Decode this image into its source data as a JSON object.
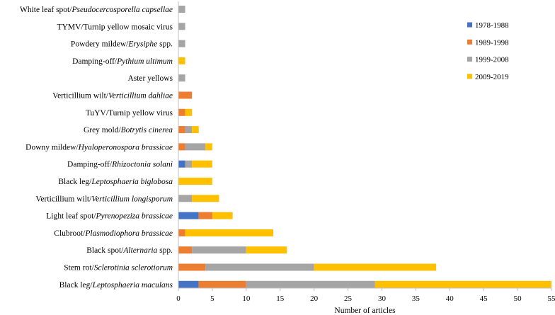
{
  "chart_data": {
    "type": "bar",
    "orientation": "horizontal",
    "stacked": true,
    "title": "",
    "xlabel": "Number of articles",
    "ylabel": "",
    "xlim": [
      0,
      55
    ],
    "xticks": [
      0,
      5,
      10,
      15,
      20,
      25,
      30,
      35,
      40,
      45,
      50,
      55
    ],
    "grid": false,
    "legend_position": "right",
    "categories": [
      {
        "plain": "White leaf spot/",
        "italic": "Pseudocercosporella capsellae",
        "suffix": ""
      },
      {
        "plain": "TYMV/Turnip yellow mosaic virus",
        "italic": "",
        "suffix": ""
      },
      {
        "plain": "Powdery mildew/",
        "italic": "Erysiphe",
        "suffix": " spp."
      },
      {
        "plain": "Damping-off/",
        "italic": "Pythium ultimum",
        "suffix": ""
      },
      {
        "plain": "Aster yellows",
        "italic": "",
        "suffix": ""
      },
      {
        "plain": "Verticillium wilt/",
        "italic": "Verticillium dahliae",
        "suffix": ""
      },
      {
        "plain": "TuYV/Turnip yellow virus",
        "italic": "",
        "suffix": ""
      },
      {
        "plain": "Grey mold/",
        "italic": "Botrytis cinerea",
        "suffix": ""
      },
      {
        "plain": "Downy mildew/",
        "italic": "Hyaloperonospora brassicae",
        "suffix": ""
      },
      {
        "plain": "Damping-off/",
        "italic": "Rhizoctonia solani",
        "suffix": ""
      },
      {
        "plain": "Black leg/",
        "italic": "Leptosphaeria biglobosa",
        "suffix": ""
      },
      {
        "plain": "Verticillium wilt/",
        "italic": "Verticillium longisporum",
        "suffix": ""
      },
      {
        "plain": "Light leaf spot/",
        "italic": "Pyrenopeziza brassicae",
        "suffix": ""
      },
      {
        "plain": "Clubroot/",
        "italic": "Plasmodiophora brassicae",
        "suffix": ""
      },
      {
        "plain": "Black spot/",
        "italic": "Alternaria",
        "suffix": " spp."
      },
      {
        "plain": "Stem rot/",
        "italic": "Sclerotinia sclerotiorum",
        "suffix": ""
      },
      {
        "plain": "Black leg/",
        "italic": "Leptosphaeria maculans",
        "suffix": ""
      }
    ],
    "series": [
      {
        "name": "1978-1988",
        "color": "#4472c4",
        "values": [
          0,
          0,
          0,
          0,
          0,
          0,
          0,
          0,
          0,
          1,
          0,
          0,
          3,
          0,
          0,
          0,
          3
        ]
      },
      {
        "name": "1989-1998",
        "color": "#ed7d31",
        "values": [
          0,
          0,
          0,
          0,
          0,
          2,
          1,
          1,
          1,
          0,
          0,
          0,
          2,
          1,
          2,
          4,
          7
        ]
      },
      {
        "name": "1999-2008",
        "color": "#a5a5a5",
        "values": [
          1,
          1,
          1,
          0,
          1,
          0,
          0,
          1,
          3,
          1,
          0,
          2,
          0,
          0,
          8,
          16,
          19
        ]
      },
      {
        "name": "2009-2019",
        "color": "#ffc000",
        "values": [
          0,
          0,
          0,
          1,
          0,
          0,
          1,
          1,
          1,
          3,
          5,
          4,
          3,
          13,
          6,
          18,
          26
        ]
      }
    ]
  }
}
